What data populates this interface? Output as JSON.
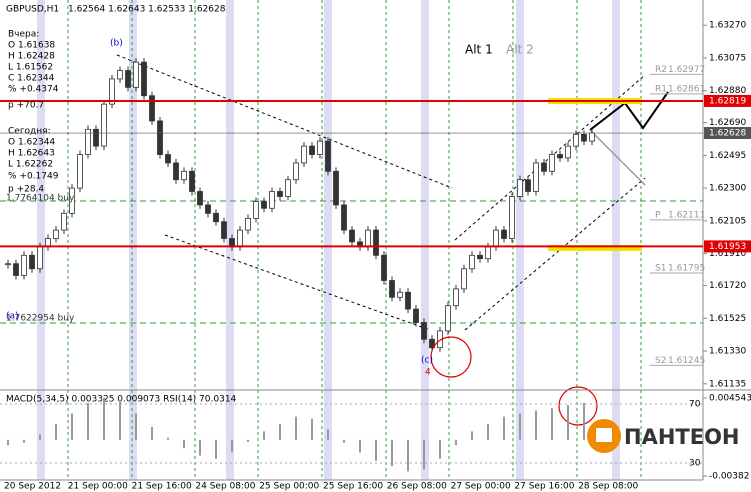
{
  "header": {
    "title": "GBPUSD,H1",
    "ohlc": "1.62564 1.62643 1.62533 1.62628"
  },
  "info_panel": [
    "Вчера:",
    "O 1.61638",
    "H 1.62428",
    "L 1.61562",
    "C 1.62344",
    "% +0.4374",
    "p +70.7",
    "Сегодня:",
    "O 1.62344",
    "H 1.62643",
    "L 1.62262",
    "% +0.1749",
    "p +28.4"
  ],
  "chart_data": {
    "type": "candlestick",
    "values": [
      1.6185,
      1.6178,
      1.619,
      1.6182,
      1.6195,
      1.62,
      1.6205,
      1.6215,
      1.623,
      1.625,
      1.6265,
      1.6255,
      1.628,
      1.6295,
      1.63,
      1.629,
      1.6305,
      1.6285,
      1.627,
      1.625,
      1.6245,
      1.6235,
      1.624,
      1.6228,
      1.622,
      1.6215,
      1.621,
      1.62,
      1.6195,
      1.6205,
      1.6212,
      1.6222,
      1.6218,
      1.6228,
      1.6225,
      1.6235,
      1.6245,
      1.6255,
      1.625,
      1.6258,
      1.624,
      1.622,
      1.6205,
      1.6198,
      1.6195,
      1.6205,
      1.619,
      1.6175,
      1.6165,
      1.6168,
      1.6158,
      1.615,
      1.614,
      1.6135,
      1.6145,
      1.616,
      1.617,
      1.6182,
      1.619,
      1.6188,
      1.6195,
      1.6205,
      1.62,
      1.6225,
      1.6235,
      1.6228,
      1.6245,
      1.624,
      1.625,
      1.6248,
      1.6255,
      1.6262,
      1.6258,
      1.62628
    ],
    "ylim": [
      1.6111,
      1.6342
    ],
    "yticks": [
      {
        "value": 1.6327,
        "label": "1.63270"
      },
      {
        "value": 1.63075,
        "label": "1.63075"
      },
      {
        "value": 1.6288,
        "label": "1.62880"
      },
      {
        "value": 1.6269,
        "label": "1.62690"
      },
      {
        "value": 1.62495,
        "label": "1.62495"
      },
      {
        "value": 1.623,
        "label": "1.62300"
      },
      {
        "value": 1.62105,
        "label": "1.62105"
      },
      {
        "value": 1.6191,
        "label": "1.61910"
      },
      {
        "value": 1.6172,
        "label": "1.61720"
      },
      {
        "value": 1.61525,
        "label": "1.61525"
      },
      {
        "value": 1.6133,
        "label": "1.61330"
      },
      {
        "value": 1.61135,
        "label": "1.61135"
      }
    ],
    "x_labels": [
      "20 Sep 2012",
      "21 Sep 00:00",
      "21 Sep 16:00",
      "24 Sep 08:00",
      "25 Sep 00:00",
      "25 Sep 16:00",
      "26 Sep 08:00",
      "27 Sep 00:00",
      "27 Sep 16:00",
      "28 Sep 08:00"
    ],
    "levels": [
      {
        "value": 1.62819,
        "label": "1.62819",
        "color": "#e00000"
      },
      {
        "value": 1.62628,
        "label": "1.62628",
        "color": "#555555"
      },
      {
        "value": 1.61953,
        "label": "1.61953",
        "color": "#e00000"
      }
    ],
    "pivots": [
      {
        "name": "R2",
        "value": 1.62977,
        "label": "1.62977"
      },
      {
        "name": "R1",
        "value": 1.62861,
        "label": "1.62861"
      },
      {
        "name": "P",
        "value": 1.62111,
        "label": "1.62111"
      },
      {
        "name": "S1",
        "value": 1.61795,
        "label": "1.61795"
      },
      {
        "name": "S2",
        "value": 1.61245,
        "label": "1.61245"
      }
    ],
    "annotations": [
      "(b)",
      "(a)",
      "(c)",
      "4",
      "Alt 1",
      "Alt 2",
      "1.7764104 buy",
      "1.7622954 buy"
    ]
  },
  "indicator": {
    "title": "MACD(5,34,5) 0.003325 0.009073 RSI(14) 70.0314",
    "ylim": [
      -0.00382,
      0.004543
    ],
    "yticks": [
      {
        "value": 0.004543,
        "label": "0.004543"
      },
      {
        "value": -0.00382,
        "label": "-0.00382"
      }
    ],
    "rsi_lim": [
      18.5,
      78.1
    ],
    "rsi_ticks": [
      70,
      30
    ],
    "values": [
      -0.0005,
      -0.0003,
      0.0005,
      0.0015,
      0.0025,
      0.0035,
      0.004,
      0.0038,
      0.0025,
      0.0012,
      0.0002,
      -0.0008,
      -0.0015,
      -0.0018,
      -0.0012,
      -0.0002,
      0.0008,
      0.0015,
      0.0022,
      0.002,
      0.001,
      -0.0003,
      -0.0012,
      -0.002,
      -0.0025,
      -0.003,
      -0.0028,
      -0.0018,
      -0.0005,
      0.0008,
      0.0015,
      0.0022,
      0.0025,
      0.0028,
      0.003,
      0.0033,
      0.0035
    ]
  },
  "logo": "ПАНТЕОН"
}
